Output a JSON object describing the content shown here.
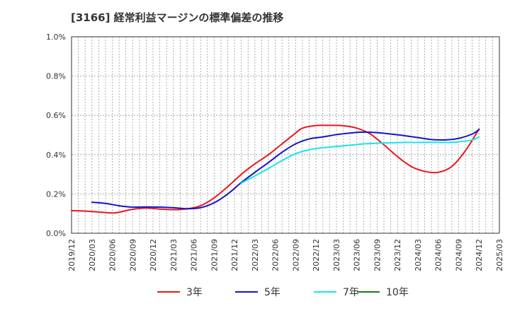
{
  "chart_data": {
    "type": "line",
    "title": "[3166]  経常利益マージンの標準偏差の推移",
    "xlabel": "",
    "ylabel": "",
    "ylim": [
      0,
      1.0
    ],
    "y_ticks": [
      0,
      0.2,
      0.4,
      0.6,
      0.8,
      1.0
    ],
    "y_tick_labels": [
      "0.0%",
      "0.2%",
      "0.4%",
      "0.6%",
      "0.8%",
      "1.0%"
    ],
    "x_range": [
      "2019-12",
      "2025-03"
    ],
    "x_tick_labels": [
      "2019/12",
      "2020/03",
      "2020/06",
      "2020/09",
      "2020/12",
      "2021/03",
      "2021/06",
      "2021/09",
      "2021/12",
      "2022/03",
      "2022/06",
      "2022/09",
      "2022/12",
      "2023/03",
      "2023/06",
      "2023/09",
      "2023/12",
      "2024/03",
      "2024/06",
      "2024/09",
      "2024/12",
      "2025/03"
    ],
    "grid": true,
    "legend_position": "bottom",
    "series": [
      {
        "name": "3年",
        "color": "#e8191c",
        "x": [
          "2019-12",
          "2020-02",
          "2020-04",
          "2020-06",
          "2020-07",
          "2020-09",
          "2020-11",
          "2021-01",
          "2021-03",
          "2021-05",
          "2021-07",
          "2021-09",
          "2021-11",
          "2022-01",
          "2022-03",
          "2022-05",
          "2022-07",
          "2022-09",
          "2022-10",
          "2022-12",
          "2023-02",
          "2023-04",
          "2023-06",
          "2023-08",
          "2023-10",
          "2023-12",
          "2024-02",
          "2024-04",
          "2024-06",
          "2024-08",
          "2024-10",
          "2024-12"
        ],
        "values": [
          0.115,
          0.113,
          0.108,
          0.103,
          0.107,
          0.122,
          0.128,
          0.123,
          0.12,
          0.124,
          0.14,
          0.18,
          0.237,
          0.3,
          0.353,
          0.4,
          0.455,
          0.51,
          0.535,
          0.548,
          0.549,
          0.547,
          0.535,
          0.505,
          0.45,
          0.39,
          0.34,
          0.315,
          0.31,
          0.34,
          0.42,
          0.53
        ]
      },
      {
        "name": "5年",
        "color": "#1515c6",
        "x": [
          "2020-03",
          "2020-05",
          "2020-07",
          "2020-09",
          "2020-11",
          "2021-01",
          "2021-03",
          "2021-05",
          "2021-07",
          "2021-09",
          "2021-11",
          "2022-01",
          "2022-03",
          "2022-05",
          "2022-07",
          "2022-09",
          "2022-11",
          "2023-01",
          "2023-03",
          "2023-05",
          "2023-07",
          "2023-09",
          "2023-11",
          "2024-01",
          "2024-03",
          "2024-05",
          "2024-07",
          "2024-09",
          "2024-11",
          "2024-12"
        ],
        "values": [
          0.158,
          0.152,
          0.14,
          0.133,
          0.134,
          0.133,
          0.13,
          0.125,
          0.13,
          0.155,
          0.2,
          0.258,
          0.31,
          0.36,
          0.412,
          0.455,
          0.48,
          0.49,
          0.502,
          0.51,
          0.515,
          0.512,
          0.505,
          0.497,
          0.487,
          0.477,
          0.475,
          0.483,
          0.505,
          0.528
        ]
      },
      {
        "name": "7年",
        "color": "#18e6e6",
        "x": [
          "2022-01",
          "2022-03",
          "2022-05",
          "2022-07",
          "2022-09",
          "2022-11",
          "2023-01",
          "2023-03",
          "2023-05",
          "2023-07",
          "2023-09",
          "2023-11",
          "2024-01",
          "2024-03",
          "2024-05",
          "2024-07",
          "2024-09",
          "2024-11",
          "2024-12"
        ],
        "values": [
          0.255,
          0.292,
          0.33,
          0.37,
          0.405,
          0.425,
          0.435,
          0.442,
          0.448,
          0.455,
          0.458,
          0.46,
          0.462,
          0.462,
          0.463,
          0.462,
          0.465,
          0.475,
          0.49
        ]
      },
      {
        "name": "10年",
        "color": "#1e7a1e",
        "x": [],
        "values": []
      }
    ]
  }
}
